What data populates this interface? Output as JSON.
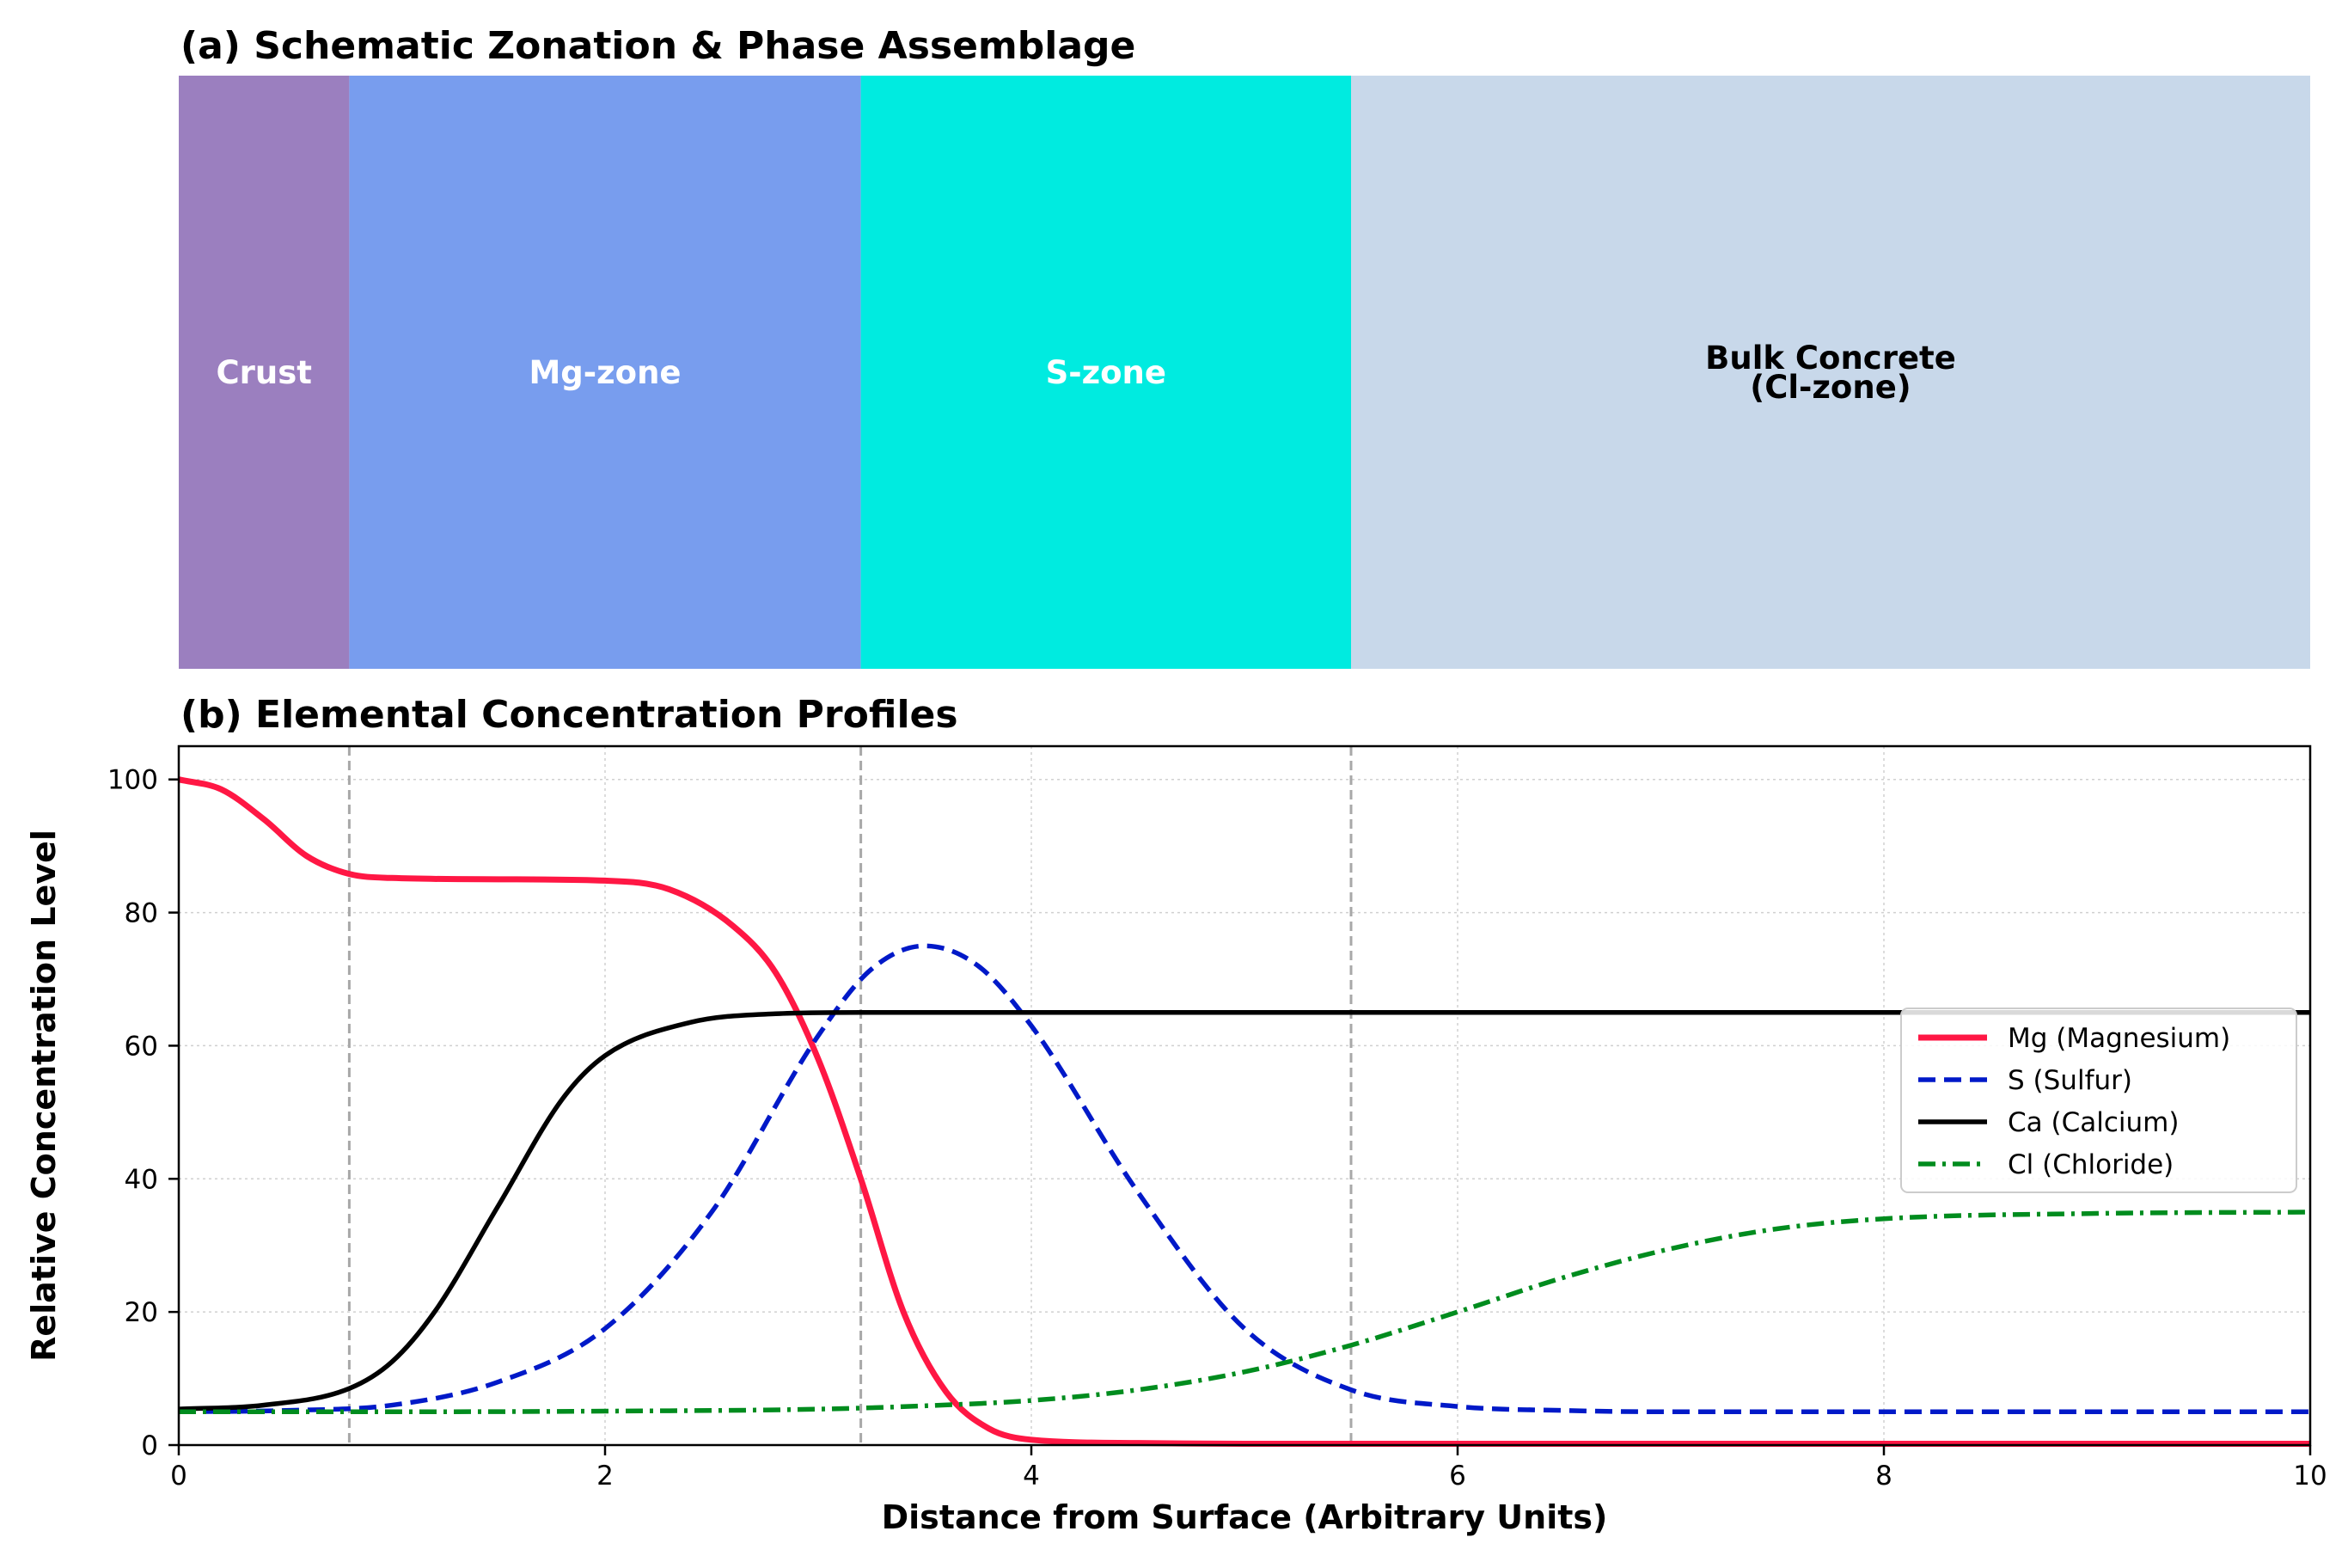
{
  "chart_data": [
    {
      "type": "zonation",
      "title": "(a) Schematic Zonation & Phase Assemblage",
      "zones": [
        {
          "label": "Crust",
          "label_lines": [
            "Crust"
          ],
          "start": 0,
          "end": 0.8,
          "color": "#9b7fbf",
          "text_color": "#ffffff"
        },
        {
          "label": "Mg-zone",
          "label_lines": [
            "Mg-zone"
          ],
          "start": 0.8,
          "end": 3.2,
          "color": "#789dee",
          "text_color": "#ffffff"
        },
        {
          "label": "S-zone",
          "label_lines": [
            "S-zone"
          ],
          "start": 3.2,
          "end": 5.5,
          "color": "#00ebe0",
          "text_color": "#ffffff"
        },
        {
          "label": "Bulk Concrete (Cl-zone)",
          "label_lines": [
            "Bulk Concrete",
            "(Cl-zone)"
          ],
          "start": 5.5,
          "end": 10,
          "color": "#c8d8ea",
          "text_color": "#000000"
        }
      ]
    },
    {
      "type": "line",
      "title": "(b) Elemental Concentration Profiles",
      "xlabel": "Distance from Surface (Arbitrary Units)",
      "ylabel": "Relative Concentration Level",
      "xlim": [
        0,
        10
      ],
      "ylim": [
        0,
        105
      ],
      "xticks": [
        0,
        2,
        4,
        6,
        8,
        10
      ],
      "yticks": [
        0,
        20,
        40,
        60,
        80,
        100
      ],
      "grid": true,
      "legend_position": "center-right",
      "zone_boundaries": [
        0.8,
        3.2,
        5.5
      ],
      "series": [
        {
          "name": "Mg (Magnesium)",
          "color": "#ff1744",
          "style": "solid",
          "x": [
            0,
            0.2,
            0.4,
            0.6,
            0.8,
            1.0,
            1.5,
            2.0,
            2.3,
            2.6,
            2.8,
            3.0,
            3.2,
            3.4,
            3.6,
            3.8,
            4.0,
            4.5,
            5,
            6,
            8,
            10
          ],
          "y": [
            100,
            98.5,
            94,
            88.5,
            85.8,
            85.2,
            85,
            84.8,
            83.5,
            78,
            71,
            58,
            40,
            20,
            8,
            2.5,
            0.8,
            0.3,
            0.2,
            0.2,
            0.2,
            0.2
          ]
        },
        {
          "name": "S (Sulfur)",
          "color": "#0019c8",
          "style": "dashed",
          "x": [
            0,
            0.5,
            1.0,
            1.5,
            2.0,
            2.5,
            3.0,
            3.25,
            3.5,
            3.75,
            4.0,
            4.5,
            5.0,
            5.5,
            6.0,
            6.5,
            7,
            8,
            9,
            10
          ],
          "y": [
            5,
            5.2,
            6,
            9.5,
            17.5,
            35,
            61.5,
            71.5,
            75,
            72,
            63,
            38,
            17.5,
            8.3,
            5.8,
            5.2,
            5,
            5,
            5,
            5
          ]
        },
        {
          "name": "Ca (Calcium)",
          "color": "#000000",
          "style": "solid",
          "x": [
            0,
            0.4,
            0.8,
            1.0,
            1.2,
            1.5,
            1.8,
            2.0,
            2.4,
            2.8,
            3.2,
            4,
            5,
            6,
            8,
            10
          ],
          "y": [
            5.4,
            6,
            8.5,
            12.5,
            20,
            36,
            52,
            58.5,
            63.5,
            64.8,
            65,
            65,
            65,
            65,
            65,
            65
          ]
        },
        {
          "name": "Cl (Chloride)",
          "color": "#008c1e",
          "style": "dashdot",
          "x": [
            0,
            1,
            2,
            3,
            3.5,
            4,
            4.5,
            5,
            5.5,
            6,
            6.5,
            7,
            7.5,
            8,
            9,
            10
          ],
          "y": [
            5,
            5,
            5.1,
            5.4,
            5.9,
            6.7,
            8.3,
            11,
            15,
            20,
            25.2,
            29.5,
            32.5,
            34,
            34.8,
            35
          ]
        }
      ]
    }
  ]
}
